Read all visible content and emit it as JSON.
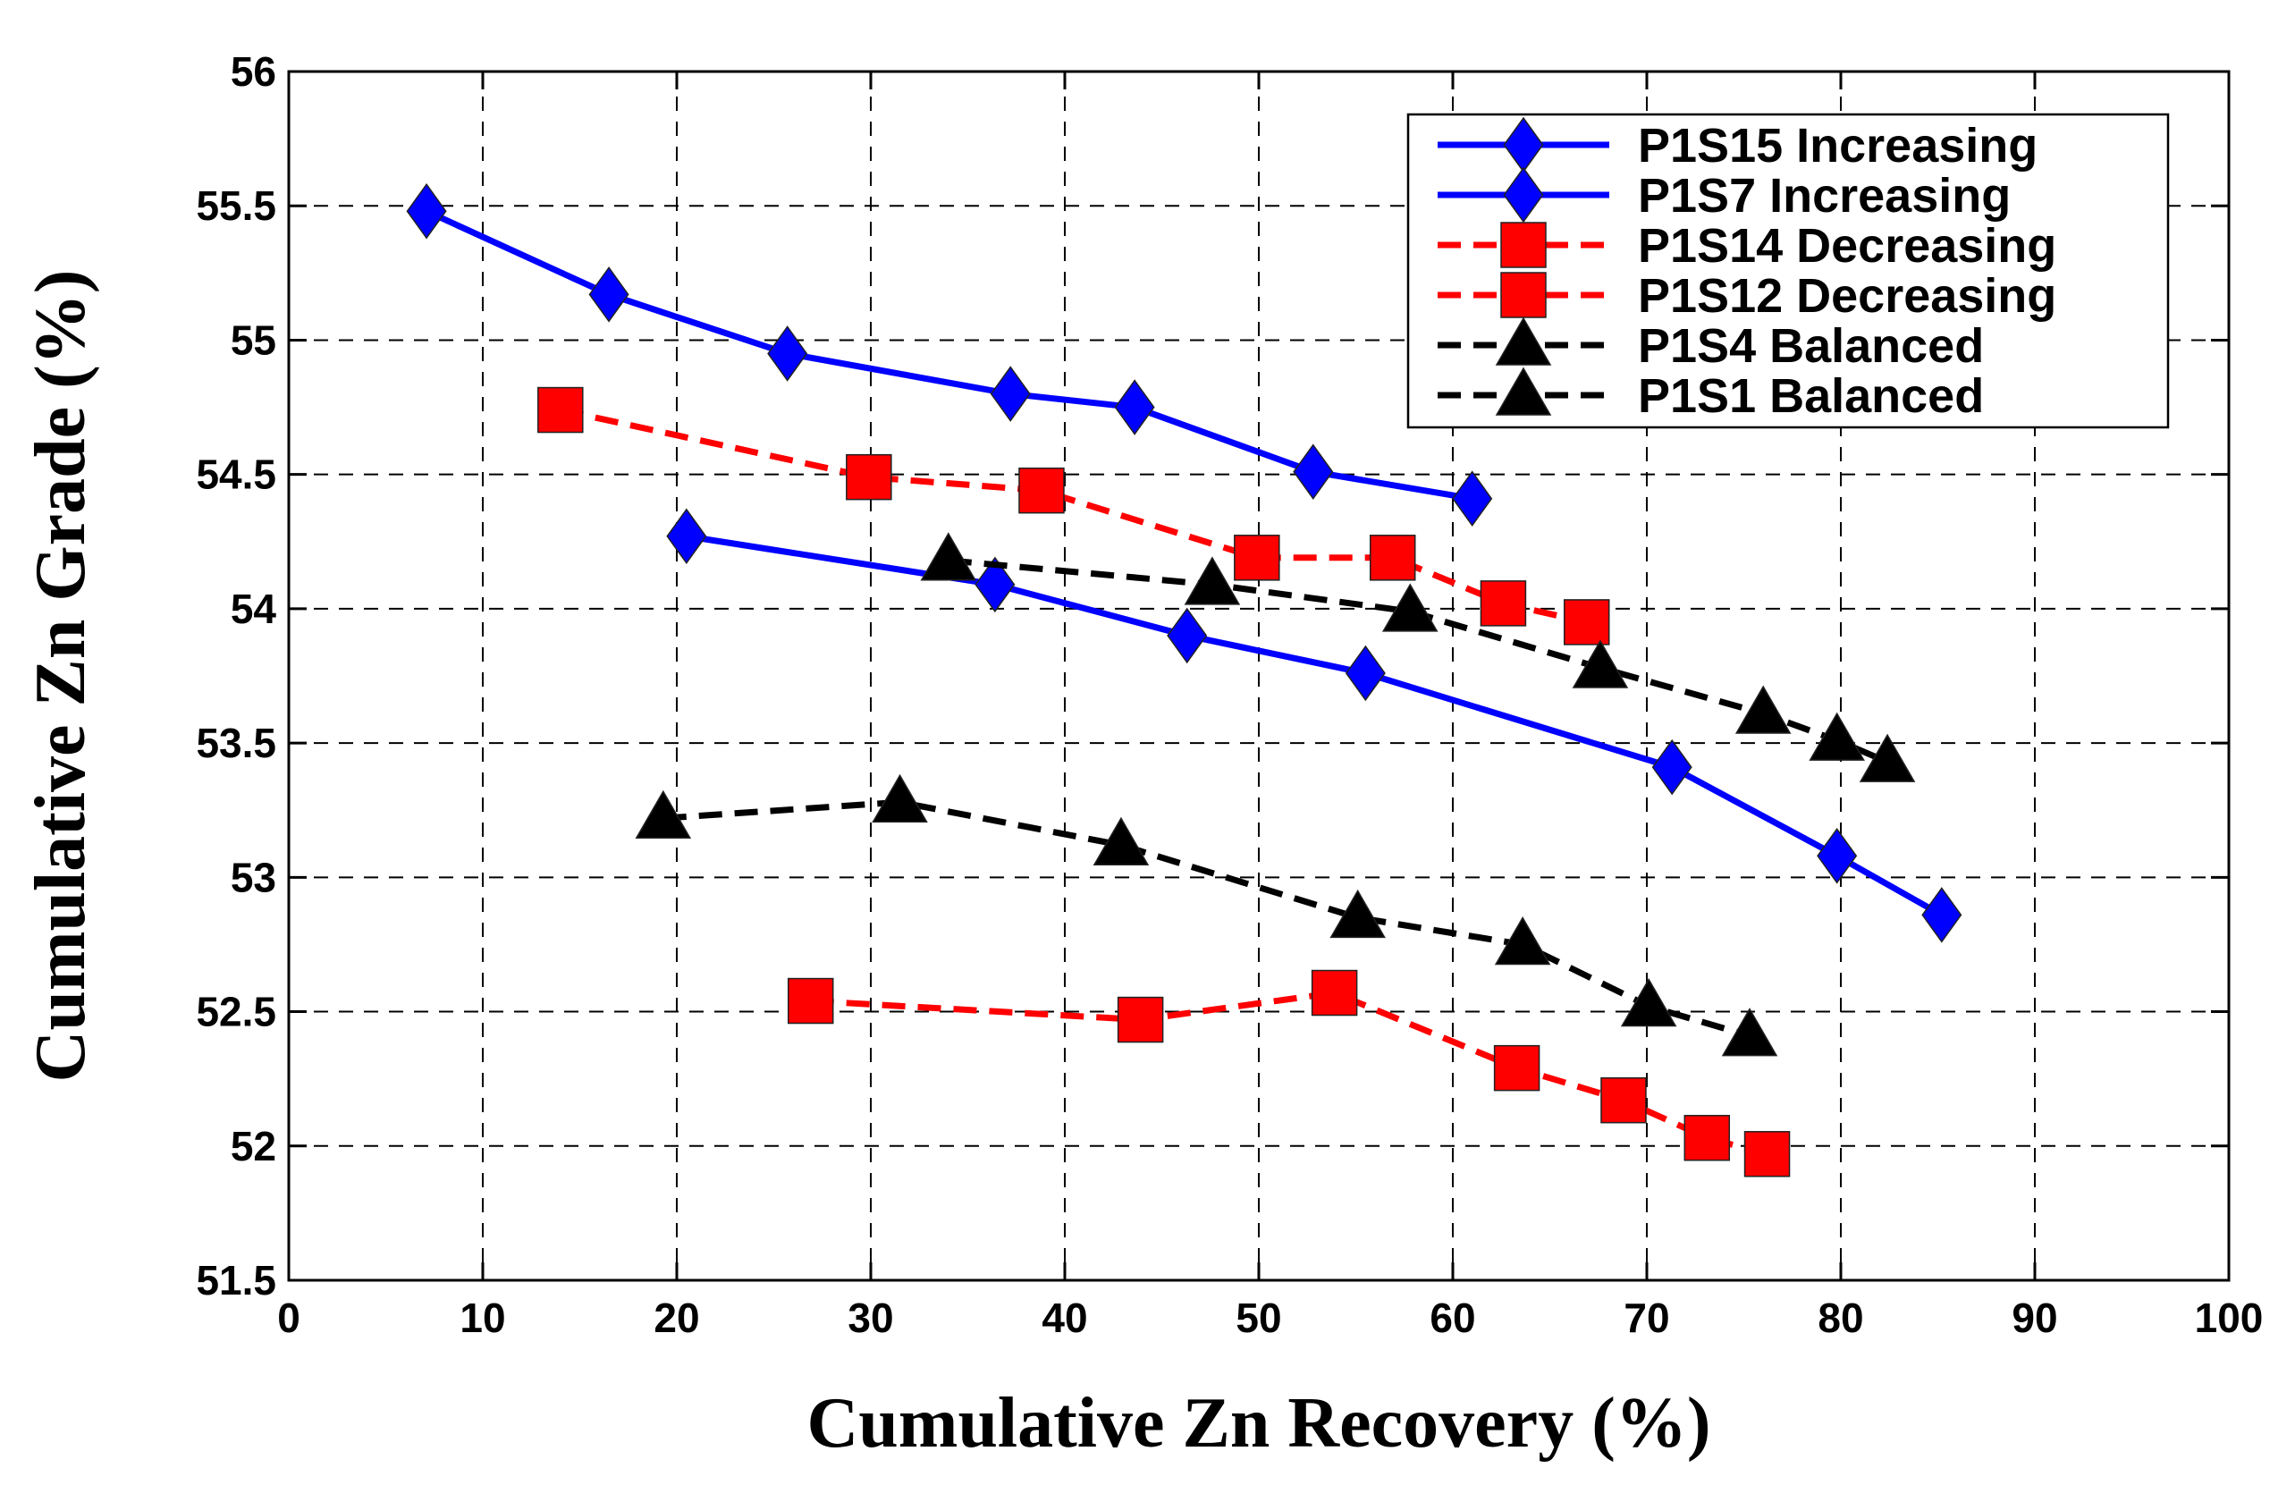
{
  "chart_data": {
    "type": "line",
    "xlabel": "Cumulative Zn Recovery (%)",
    "ylabel": "Cumulative Zn Grade (%)",
    "xlim": [
      0,
      100
    ],
    "ylim": [
      51.5,
      56
    ],
    "xticks": [
      0,
      10,
      20,
      30,
      40,
      50,
      60,
      70,
      80,
      90,
      100
    ],
    "yticks": [
      51.5,
      52,
      52.5,
      53,
      53.5,
      54,
      54.5,
      55,
      55.5,
      56
    ],
    "grid": true,
    "legend_position": "top-right",
    "series": [
      {
        "name": "P1S15 Increasing",
        "color": "#0000ff",
        "dash": "solid",
        "marker": "diamond",
        "x": [
          7.1,
          16.5,
          25.7,
          37.2,
          43.6,
          52.8,
          61.0
        ],
        "y": [
          55.48,
          55.17,
          54.95,
          54.8,
          54.75,
          54.51,
          54.41
        ]
      },
      {
        "name": "P1S7 Increasing",
        "color": "#0000ff",
        "dash": "solid",
        "marker": "diamond",
        "x": [
          20.5,
          36.4,
          46.3,
          55.5,
          71.3,
          79.8,
          85.2
        ],
        "y": [
          54.27,
          54.09,
          53.9,
          53.76,
          53.41,
          53.08,
          52.86
        ]
      },
      {
        "name": "P1S14 Decreasing",
        "color": "#ff0000",
        "dash": "dashed",
        "marker": "square",
        "x": [
          14.0,
          29.9,
          38.8,
          49.9,
          56.9,
          62.6,
          66.9
        ],
        "y": [
          54.74,
          54.49,
          54.44,
          54.19,
          54.19,
          54.02,
          53.95
        ]
      },
      {
        "name": "P1S12 Decreasing",
        "color": "#ff0000",
        "dash": "dashed",
        "marker": "square",
        "x": [
          26.9,
          43.9,
          53.9,
          63.3,
          68.8,
          73.1,
          76.2
        ],
        "y": [
          52.54,
          52.47,
          52.57,
          52.29,
          52.17,
          52.03,
          51.97
        ]
      },
      {
        "name": "P1S4 Balanced",
        "color": "#000000",
        "dash": "dashed",
        "marker": "triangle",
        "x": [
          34.0,
          47.6,
          57.8,
          67.6,
          76.0,
          79.8,
          82.4
        ],
        "y": [
          54.18,
          54.09,
          53.99,
          53.78,
          53.61,
          53.51,
          53.43
        ]
      },
      {
        "name": "P1S1 Balanced",
        "color": "#000000",
        "dash": "dashed",
        "marker": "triangle",
        "x": [
          19.3,
          31.5,
          42.9,
          55.1,
          63.6,
          70.1,
          75.3
        ],
        "y": [
          53.22,
          53.28,
          53.12,
          52.85,
          52.75,
          52.52,
          52.41
        ]
      }
    ]
  }
}
